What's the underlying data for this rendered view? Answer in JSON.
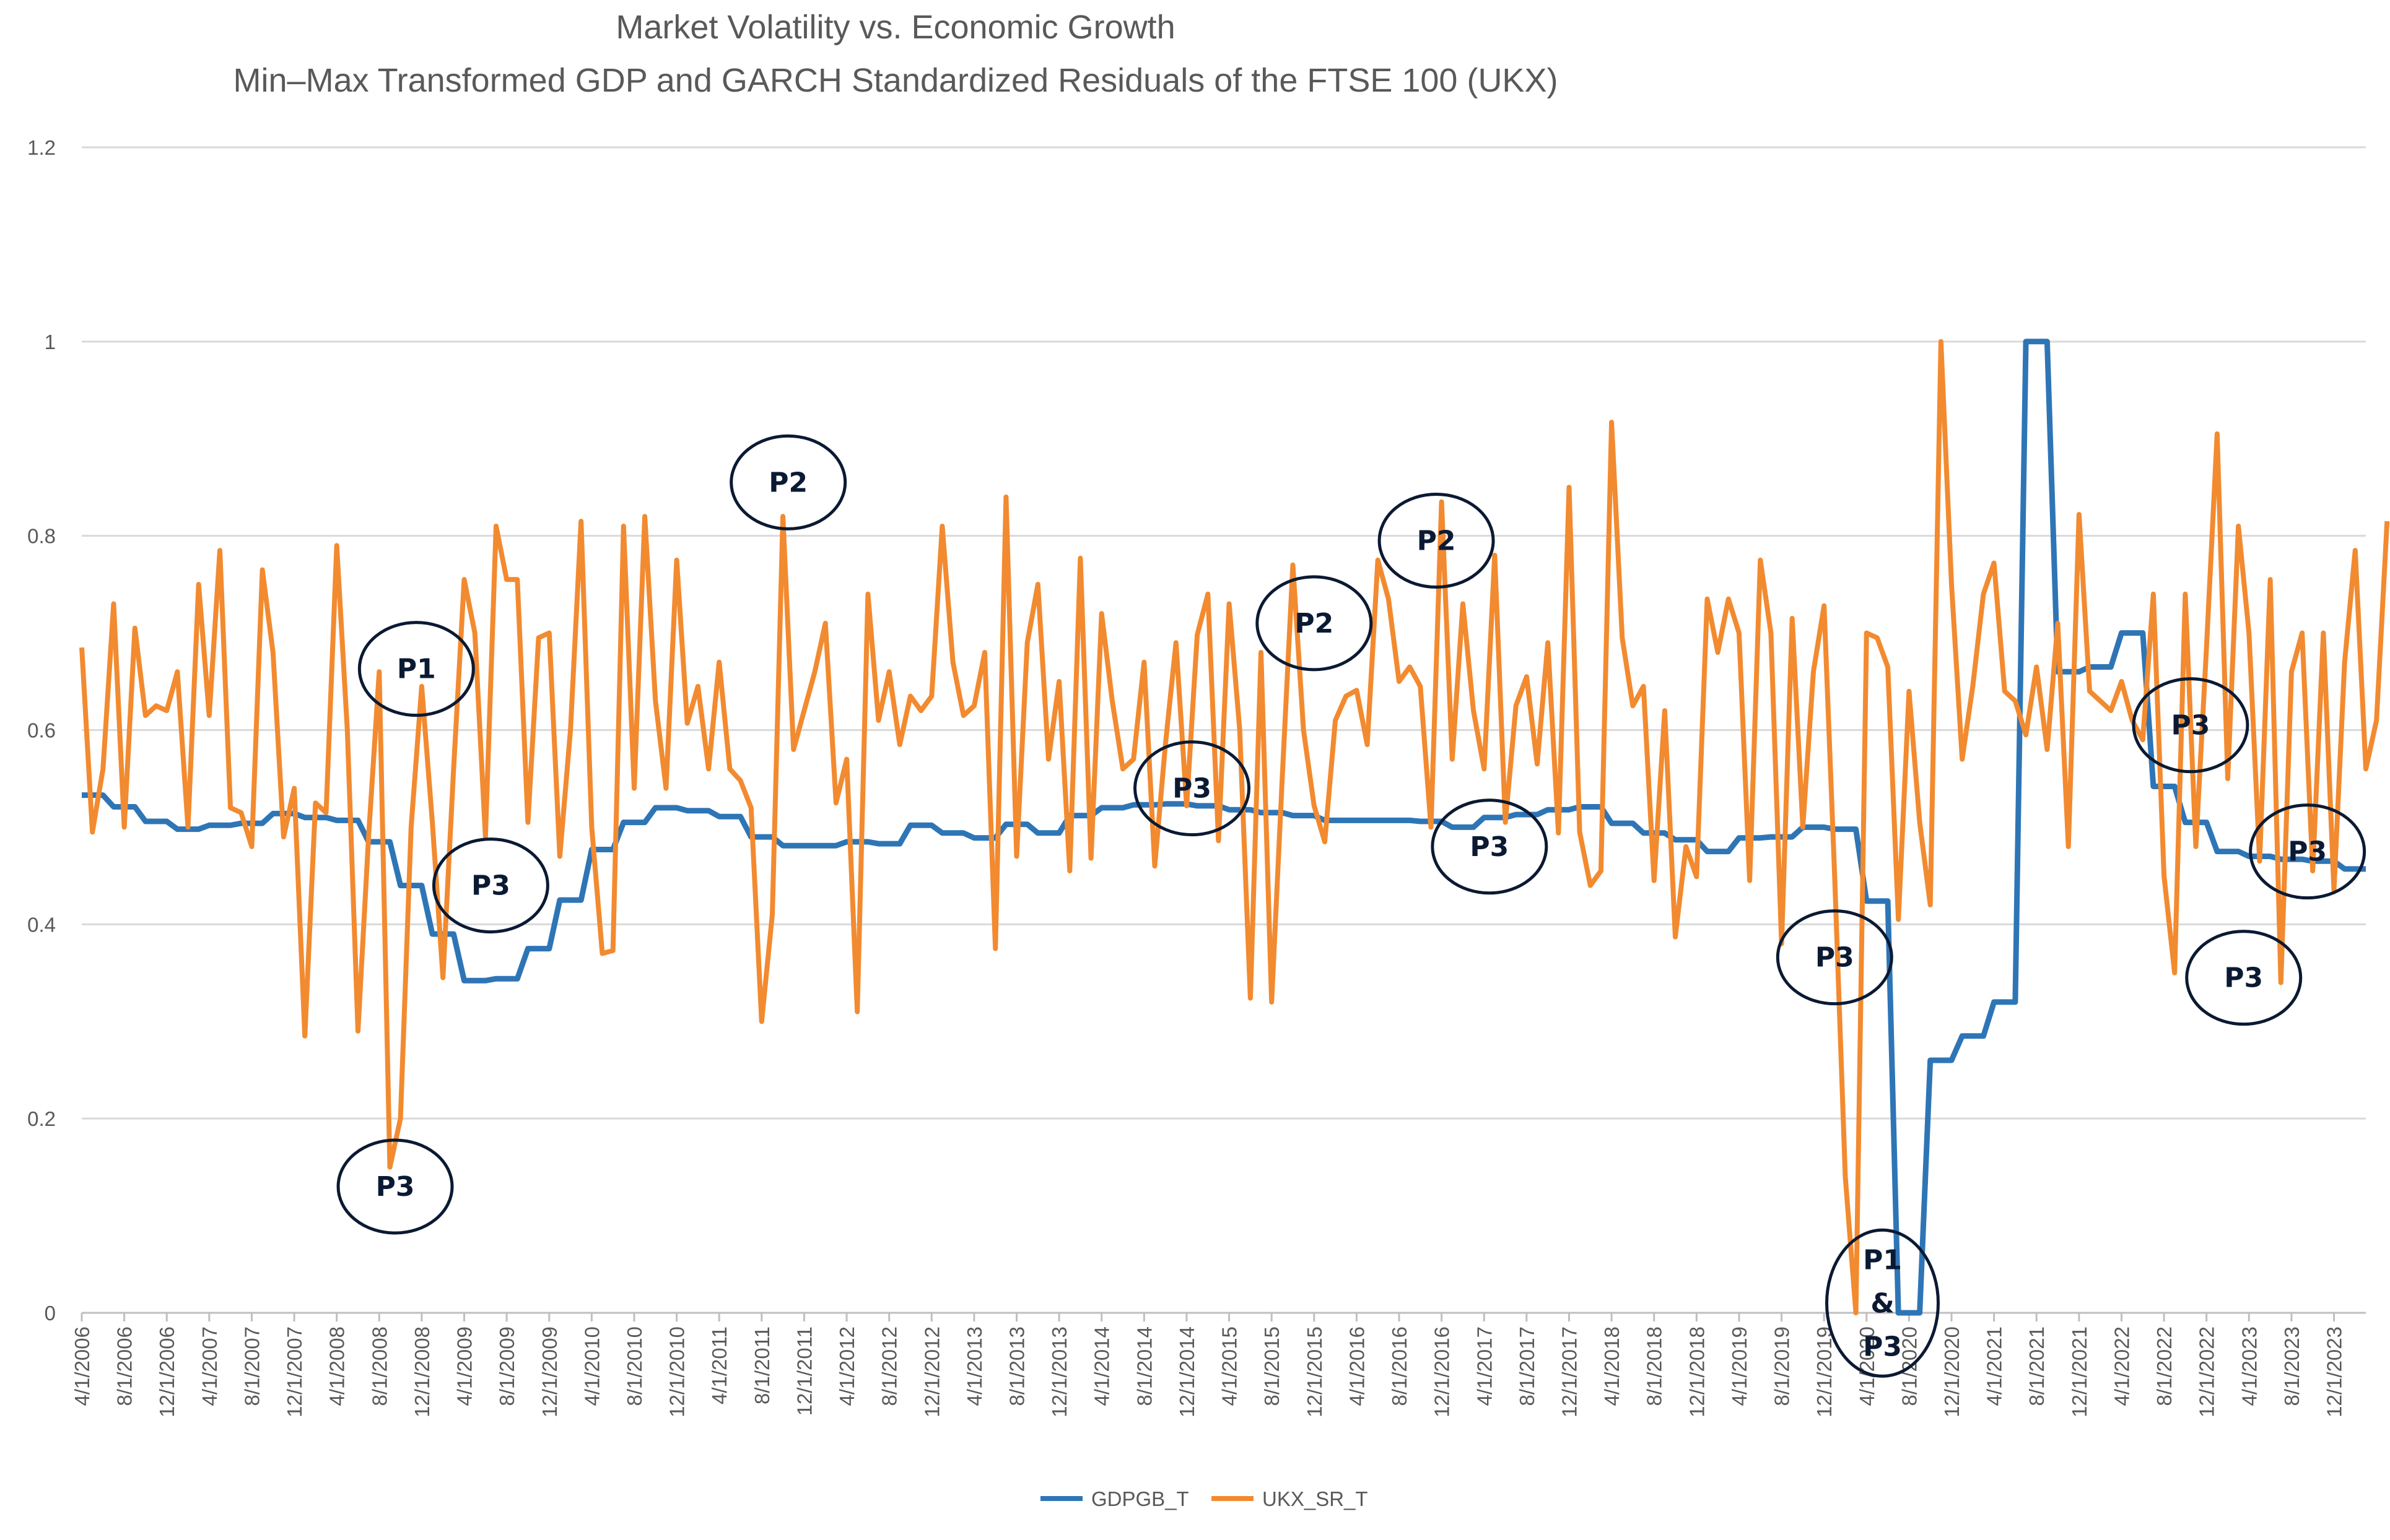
{
  "chart_data": {
    "type": "line",
    "title": "Market Volatility vs. Economic Growth",
    "subtitle": "Min–Max Transformed GDP and GARCH Standardized Residuals of the FTSE 100 (UKX)",
    "xlabel": "",
    "ylabel": "",
    "ylim": [
      0,
      1.2
    ],
    "yticks": [
      "0",
      "0.2",
      "0.4",
      "0.6",
      "0.8",
      "1",
      "1.2"
    ],
    "grid": true,
    "legend": "bottom-center",
    "x_range": [
      "4/1/2006",
      "3/1/2024"
    ],
    "x_tick_labels": [
      "4/1/2006",
      "8/1/2006",
      "12/1/2006",
      "4/1/2007",
      "8/1/2007",
      "12/1/2007",
      "4/1/2008",
      "8/1/2008",
      "12/1/2008",
      "4/1/2009",
      "8/1/2009",
      "12/1/2009",
      "4/1/2010",
      "8/1/2010",
      "12/1/2010",
      "4/1/2011",
      "8/1/2011",
      "12/1/2011",
      "4/1/2012",
      "8/1/2012",
      "12/1/2012",
      "4/1/2013",
      "8/1/2013",
      "12/1/2013",
      "4/1/2014",
      "8/1/2014",
      "12/1/2014",
      "4/1/2015",
      "8/1/2015",
      "12/1/2015",
      "4/1/2016",
      "8/1/2016",
      "12/1/2016",
      "4/1/2017",
      "8/1/2017",
      "12/1/2017",
      "4/1/2018",
      "8/1/2018",
      "12/1/2018",
      "4/1/2019",
      "8/1/2019",
      "12/1/2019",
      "4/1/2020",
      "8/1/2020",
      "12/1/2020",
      "4/1/2021",
      "8/1/2021",
      "12/1/2021",
      "4/1/2022",
      "8/1/2022",
      "12/1/2022",
      "4/1/2023",
      "8/1/2023",
      "12/1/2023"
    ],
    "series": [
      {
        "name": "GDPGB_T",
        "color": "#2e75b6",
        "values": [
          0.533,
          0.533,
          0.533,
          0.521,
          0.521,
          0.521,
          0.506,
          0.506,
          0.506,
          0.498,
          0.498,
          0.498,
          0.502,
          0.502,
          0.502,
          0.504,
          0.504,
          0.504,
          0.514,
          0.514,
          0.514,
          0.51,
          0.51,
          0.51,
          0.507,
          0.507,
          0.507,
          0.485,
          0.485,
          0.485,
          0.44,
          0.44,
          0.44,
          0.39,
          0.39,
          0.39,
          0.342,
          0.342,
          0.342,
          0.344,
          0.344,
          0.344,
          0.375,
          0.375,
          0.375,
          0.425,
          0.425,
          0.425,
          0.477,
          0.477,
          0.477,
          0.505,
          0.505,
          0.505,
          0.52,
          0.52,
          0.52,
          0.517,
          0.517,
          0.517,
          0.511,
          0.511,
          0.511,
          0.49,
          0.49,
          0.49,
          0.481,
          0.481,
          0.481,
          0.481,
          0.481,
          0.481,
          0.485,
          0.485,
          0.485,
          0.483,
          0.483,
          0.483,
          0.502,
          0.502,
          0.502,
          0.494,
          0.494,
          0.494,
          0.489,
          0.489,
          0.489,
          0.503,
          0.503,
          0.503,
          0.494,
          0.494,
          0.494,
          0.512,
          0.512,
          0.512,
          0.52,
          0.52,
          0.52,
          0.523,
          0.523,
          0.523,
          0.524,
          0.524,
          0.524,
          0.522,
          0.522,
          0.522,
          0.518,
          0.518,
          0.518,
          0.515,
          0.515,
          0.515,
          0.512,
          0.512,
          0.512,
          0.507,
          0.507,
          0.507,
          0.507,
          0.507,
          0.507,
          0.507,
          0.507,
          0.507,
          0.506,
          0.506,
          0.506,
          0.5,
          0.5,
          0.5,
          0.51,
          0.51,
          0.51,
          0.513,
          0.513,
          0.513,
          0.518,
          0.518,
          0.518,
          0.521,
          0.521,
          0.521,
          0.504,
          0.504,
          0.504,
          0.494,
          0.494,
          0.494,
          0.487,
          0.487,
          0.487,
          0.475,
          0.475,
          0.475,
          0.489,
          0.489,
          0.489,
          0.49,
          0.49,
          0.49,
          0.5,
          0.5,
          0.5,
          0.498,
          0.498,
          0.498,
          0.424,
          0.424,
          0.424,
          0.0,
          0.0,
          0.0,
          0.26,
          0.26,
          0.26,
          0.285,
          0.285,
          0.285,
          0.32,
          0.32,
          0.32,
          1.0,
          1.0,
          1.0,
          0.66,
          0.66,
          0.66,
          0.665,
          0.665,
          0.665,
          0.7,
          0.7,
          0.7,
          0.542,
          0.542,
          0.542,
          0.505,
          0.505,
          0.505,
          0.475,
          0.475,
          0.475,
          0.47,
          0.47,
          0.47,
          0.467,
          0.467,
          0.467,
          0.465,
          0.465,
          0.465,
          0.457,
          0.457,
          0.457
        ]
      },
      {
        "name": "UKX_SR_T",
        "color": "#f28a30",
        "values": [
          0.685,
          0.495,
          0.56,
          0.73,
          0.5,
          0.705,
          0.615,
          0.625,
          0.62,
          0.66,
          0.5,
          0.75,
          0.615,
          0.785,
          0.52,
          0.515,
          0.48,
          0.765,
          0.68,
          0.49,
          0.54,
          0.285,
          0.525,
          0.515,
          0.79,
          0.6,
          0.29,
          0.49,
          0.66,
          0.15,
          0.2,
          0.5,
          0.645,
          0.505,
          0.345,
          0.56,
          0.755,
          0.7,
          0.49,
          0.81,
          0.755,
          0.755,
          0.505,
          0.695,
          0.7,
          0.47,
          0.6,
          0.815,
          0.5,
          0.37,
          0.373,
          0.81,
          0.54,
          0.82,
          0.63,
          0.54,
          0.775,
          0.607,
          0.645,
          0.56,
          0.67,
          0.56,
          0.548,
          0.52,
          0.3,
          0.41,
          0.82,
          0.58,
          0.62,
          0.66,
          0.71,
          0.525,
          0.57,
          0.31,
          0.74,
          0.61,
          0.66,
          0.585,
          0.635,
          0.62,
          0.635,
          0.81,
          0.67,
          0.615,
          0.625,
          0.68,
          0.375,
          0.84,
          0.47,
          0.69,
          0.75,
          0.57,
          0.65,
          0.455,
          0.777,
          0.468,
          0.72,
          0.63,
          0.56,
          0.57,
          0.67,
          0.46,
          0.585,
          0.69,
          0.522,
          0.698,
          0.74,
          0.486,
          0.73,
          0.6,
          0.324,
          0.68,
          0.32,
          0.55,
          0.77,
          0.6,
          0.522,
          0.485,
          0.61,
          0.635,
          0.641,
          0.585,
          0.775,
          0.735,
          0.65,
          0.665,
          0.645,
          0.5,
          0.835,
          0.57,
          0.73,
          0.62,
          0.56,
          0.78,
          0.505,
          0.625,
          0.655,
          0.565,
          0.69,
          0.494,
          0.85,
          0.495,
          0.44,
          0.455,
          0.917,
          0.695,
          0.625,
          0.645,
          0.445,
          0.62,
          0.387,
          0.48,
          0.449,
          0.735,
          0.68,
          0.735,
          0.7,
          0.445,
          0.775,
          0.7,
          0.38,
          0.715,
          0.5,
          0.66,
          0.728,
          0.45,
          0.14,
          0.0,
          0.7,
          0.695,
          0.665,
          0.405,
          0.64,
          0.505,
          0.42,
          1.0,
          0.75,
          0.57,
          0.645,
          0.74,
          0.772,
          0.64,
          0.63,
          0.595,
          0.665,
          0.58,
          0.71,
          0.48,
          0.822,
          0.64,
          0.63,
          0.62,
          0.65,
          0.61,
          0.59,
          0.74,
          0.45,
          0.35,
          0.74,
          0.48,
          0.685,
          0.905,
          0.55,
          0.81,
          0.7,
          0.465,
          0.755,
          0.34,
          0.66,
          0.7,
          0.455,
          0.7,
          0.435,
          0.67,
          0.785,
          0.56,
          0.61,
          0.815
        ]
      }
    ],
    "annotations": [
      {
        "label": "P1",
        "x_index": 31.5,
        "y": 0.663
      },
      {
        "label": "P3",
        "x_index": 38.5,
        "y": 0.44
      },
      {
        "label": "P3",
        "x_index": 29.5,
        "y": 0.13
      },
      {
        "label": "P2",
        "x_index": 66.5,
        "y": 0.855
      },
      {
        "label": "P3",
        "x_index": 104.5,
        "y": 0.54
      },
      {
        "label": "P2",
        "x_index": 116.0,
        "y": 0.71
      },
      {
        "label": "P2",
        "x_index": 127.5,
        "y": 0.795
      },
      {
        "label": "P3",
        "x_index": 132.5,
        "y": 0.48
      },
      {
        "label": "P3",
        "x_index": 165.0,
        "y": 0.366
      },
      {
        "label": "P1\n&\nP3",
        "x_index": 169.5,
        "y": 0.01
      },
      {
        "label": "P3",
        "x_index": 198.5,
        "y": 0.605
      },
      {
        "label": "P3",
        "x_index": 203.5,
        "y": 0.345
      },
      {
        "label": "P3",
        "x_index": 209.5,
        "y": 0.475
      }
    ]
  }
}
